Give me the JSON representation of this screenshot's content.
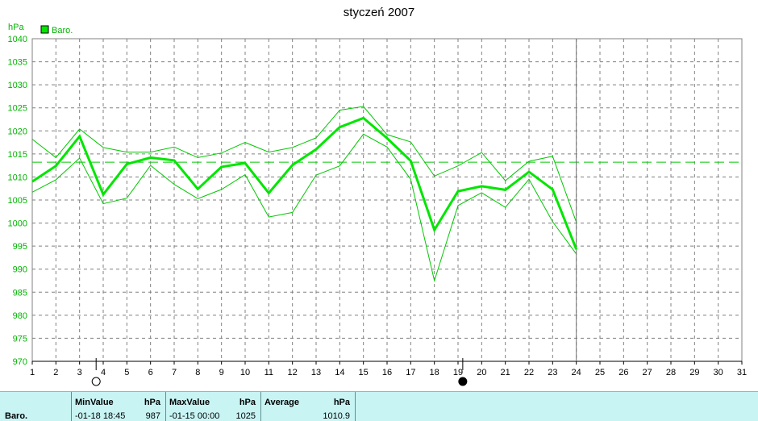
{
  "chart_data": {
    "type": "line",
    "title": "styczeń 2007",
    "ylabel": "hPa",
    "legend": "Baro.",
    "legend_position": "top-left",
    "grid": true,
    "ylim": [
      970,
      1040
    ],
    "yticks": [
      970,
      975,
      980,
      985,
      990,
      995,
      1000,
      1005,
      1010,
      1015,
      1020,
      1025,
      1030,
      1035,
      1040
    ],
    "xlim": [
      1,
      31
    ],
    "x": [
      1,
      2,
      3,
      4,
      5,
      6,
      7,
      8,
      9,
      10,
      11,
      12,
      13,
      14,
      15,
      16,
      17,
      18,
      19,
      20,
      21,
      22,
      23,
      24
    ],
    "series": [
      {
        "role": "average",
        "values": [
          1009.0,
          1012.4,
          1018.8,
          1006.2,
          1012.8,
          1014.2,
          1013.6,
          1007.4,
          1012.2,
          1013.0,
          1006.5,
          1012.6,
          1016.0,
          1020.8,
          1022.8,
          1018.4,
          1013.5,
          998.5,
          1006.9,
          1008.0,
          1007.2,
          1011.1,
          1007.3,
          994.3
        ]
      },
      {
        "role": "max",
        "values": [
          1018.2,
          1014.2,
          1020.4,
          1016.4,
          1015.4,
          1015.4,
          1016.5,
          1014.2,
          1015.2,
          1017.5,
          1015.4,
          1016.4,
          1018.5,
          1024.5,
          1025.3,
          1019.2,
          1017.6,
          1010.2,
          1012.4,
          1015.3,
          1009.2,
          1013.4,
          1014.5,
          1000.2
        ]
      },
      {
        "role": "min",
        "values": [
          1006.7,
          1009.4,
          1014.1,
          1004.2,
          1005.4,
          1012.5,
          1008.4,
          1005.3,
          1007.3,
          1010.5,
          1001.3,
          1002.3,
          1010.4,
          1012.4,
          1019.3,
          1016.5,
          1009.5,
          987.5,
          1003.8,
          1006.6,
          1003.4,
          1009.5,
          1000.3,
          993.3
        ]
      }
    ],
    "reference_line": 1013.2,
    "cursor_day": 24,
    "moon_phases": [
      {
        "day": 3.7,
        "phase": "full"
      },
      {
        "day": 19.2,
        "phase": "new"
      }
    ],
    "colors": {
      "line": "#00e600",
      "thin": "#00c800",
      "grid": "#808080",
      "axis": "#000000"
    }
  },
  "stats": {
    "series_label": "Baro.",
    "min": {
      "label": "MinValue",
      "unit": "hPa",
      "date": "-01-18  18:45",
      "value": "987"
    },
    "max": {
      "label": "MaxValue",
      "unit": "hPa",
      "date": "-01-15  00:00",
      "value": "1025"
    },
    "avg": {
      "label": "Average",
      "unit": "hPa",
      "value": "1010.9"
    }
  }
}
